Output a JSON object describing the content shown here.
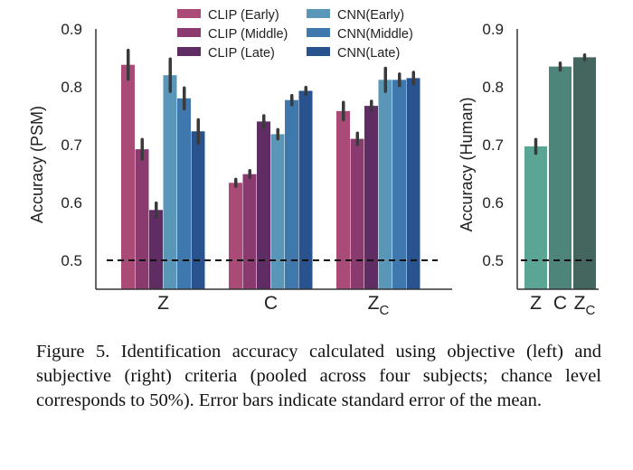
{
  "chart_data": [
    {
      "type": "bar",
      "title": "",
      "xlabel": "",
      "ylabel": "Accuracy (PSM)",
      "ylim": [
        0.45,
        0.9
      ],
      "yticks": [
        "0.5",
        "0.6",
        "0.7",
        "0.8",
        "0.9"
      ],
      "categories": [
        {
          "base": "Z",
          "sub": ""
        },
        {
          "base": "C",
          "sub": ""
        },
        {
          "base": "Z",
          "sub": "C"
        }
      ],
      "series": [
        {
          "name": "CLIP (Early)",
          "color": "#a94b76",
          "values": [
            0.838,
            0.634,
            0.758
          ],
          "errors": [
            0.025,
            0.006,
            0.015
          ]
        },
        {
          "name": "CLIP (Middle)",
          "color": "#8a3a6f",
          "values": [
            0.692,
            0.649,
            0.71
          ],
          "errors": [
            0.017,
            0.006,
            0.01
          ]
        },
        {
          "name": "CLIP (Late)",
          "color": "#5f2d63",
          "values": [
            0.587,
            0.74,
            0.767
          ],
          "errors": [
            0.012,
            0.01,
            0.008
          ]
        },
        {
          "name": "CNN(Early)",
          "color": "#5996b8",
          "values": [
            0.82,
            0.718,
            0.812
          ],
          "errors": [
            0.028,
            0.008,
            0.02
          ]
        },
        {
          "name": "CNN(Middle)",
          "color": "#3f78ad",
          "values": [
            0.78,
            0.777,
            0.812
          ],
          "errors": [
            0.018,
            0.008,
            0.01
          ]
        },
        {
          "name": "CNN(Late)",
          "color": "#28538f",
          "values": [
            0.723,
            0.793,
            0.815
          ],
          "errors": [
            0.02,
            0.006,
            0.01
          ]
        }
      ],
      "chance_level": 0.5
    },
    {
      "type": "bar",
      "title": "",
      "xlabel": "",
      "ylabel": "Accuracy (Human)",
      "ylim": [
        0.45,
        0.9
      ],
      "yticks": [
        "0.5",
        "0.6",
        "0.7",
        "0.8",
        "0.9"
      ],
      "categories": [
        {
          "base": "Z",
          "sub": ""
        },
        {
          "base": "C",
          "sub": ""
        },
        {
          "base": "Z",
          "sub": "C"
        }
      ],
      "values": [
        0.697,
        0.835,
        0.851
      ],
      "errors": [
        0.012,
        0.006,
        0.004
      ],
      "colors": [
        "#5aa594",
        "#4e857a",
        "#44665f"
      ],
      "chance_level": 0.5
    }
  ],
  "caption": "Figure 5.  Identification accuracy calculated using objective (left) and subjective (right) criteria (pooled across four subjects; chance level corresponds to 50%).  Error bars indicate standard error of the mean."
}
